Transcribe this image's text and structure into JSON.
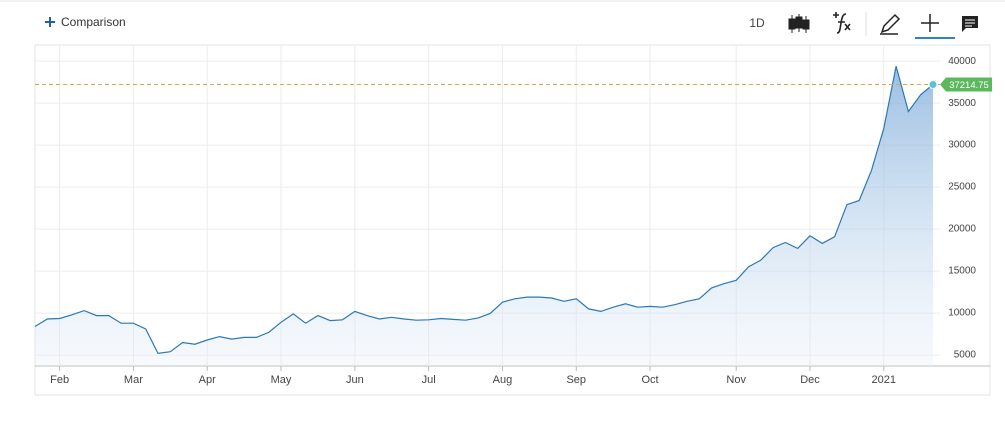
{
  "toolbar": {
    "comparison": "Comparison",
    "interval": "1D"
  },
  "chart_data": {
    "type": "area",
    "categories": [
      null,
      null,
      "Feb",
      null,
      null,
      null,
      null,
      null,
      "Mar",
      null,
      null,
      null,
      null,
      null,
      "Apr",
      null,
      null,
      null,
      null,
      null,
      "May",
      null,
      null,
      null,
      null,
      null,
      "Jun",
      null,
      null,
      null,
      null,
      null,
      "Jul",
      null,
      null,
      null,
      null,
      null,
      "Aug",
      null,
      null,
      null,
      null,
      null,
      "Sep",
      null,
      null,
      null,
      null,
      null,
      "Oct",
      null,
      null,
      null,
      null,
      null,
      null,
      "Nov",
      null,
      null,
      null,
      null,
      null,
      "Dec",
      null,
      null,
      null,
      null,
      null,
      "2021",
      null,
      null,
      null,
      null
    ],
    "values": [
      8400,
      9300,
      9350,
      9800,
      10300,
      9700,
      9700,
      8800,
      8800,
      8100,
      5200,
      5400,
      6500,
      6300,
      6800,
      7200,
      6900,
      7100,
      7100,
      7700,
      8900,
      9900,
      8800,
      9700,
      9100,
      9200,
      10200,
      9700,
      9300,
      9500,
      9300,
      9150,
      9200,
      9350,
      9250,
      9150,
      9400,
      9950,
      11300,
      11700,
      11900,
      11900,
      11800,
      11400,
      11700,
      10500,
      10200,
      10700,
      11100,
      10700,
      10800,
      10700,
      11000,
      11400,
      11700,
      13000,
      13500,
      13900,
      15500,
      16300,
      17800,
      18400,
      17700,
      19200,
      18300,
      19100,
      22900,
      23400,
      27000,
      32000,
      39400,
      34000,
      36000,
      37214.75
    ],
    "color": "#2b78b8",
    "ylim": [
      3700,
      41800
    ],
    "yticks": [
      5000,
      10000,
      15000,
      20000,
      25000,
      30000,
      35000,
      40000
    ],
    "grid": true
  }
}
